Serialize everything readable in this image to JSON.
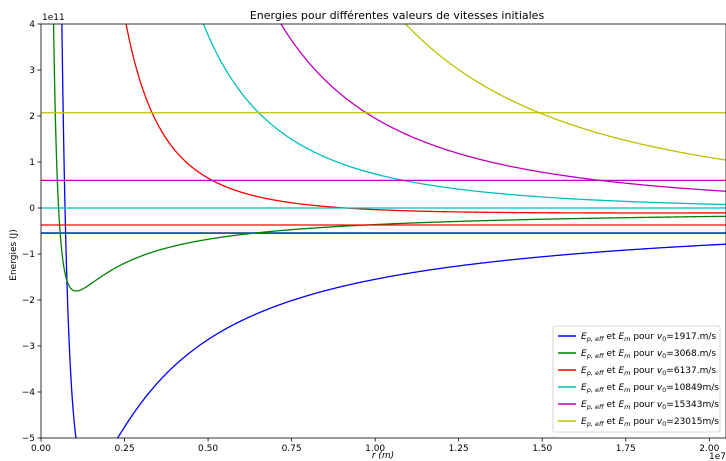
{
  "chart_data": {
    "type": "line",
    "title": "Energies pour différentes valeurs de vitesses initiales",
    "xlabel": "r (m)",
    "ylabel": "Energies (J)",
    "x_offset_label": "1e7",
    "y_offset_label": "1e11",
    "xlim": [
      0,
      20500000
    ],
    "ylim": [
      -500000000000.0,
      400000000000.0
    ],
    "x_tick_values": [
      0,
      2500000,
      5000000,
      7500000,
      10000000,
      12500000,
      15000000,
      17500000,
      20000000
    ],
    "x_tick_labels": [
      "0.00",
      "0.25",
      "0.50",
      "0.75",
      "1.00",
      "1.25",
      "1.50",
      "1.75",
      "2.00"
    ],
    "y_tick_values": [
      -500000000000.0,
      -400000000000.0,
      -300000000000.0,
      -200000000000.0,
      -100000000000.0,
      0,
      100000000000.0,
      200000000000.0,
      300000000000.0,
      400000000000.0
    ],
    "y_tick_labels": [
      "−5",
      "−4",
      "−3",
      "−2",
      "−1",
      "0",
      "1",
      "2",
      "3",
      "4"
    ],
    "legend_position": "lower right",
    "grid": false,
    "series": [
      {
        "prefix": "E",
        "sub": "p, eff",
        "mid": " et ",
        "prefix2": "E",
        "sub2": "m",
        "suffix": " pour ",
        "v": "v",
        "vsub": "0",
        "value": "=1917.m/s",
        "color": "#0000ff",
        "Em": -54000000000.0,
        "K": 1.2e+24,
        "A": 1.67e+18
      },
      {
        "prefix": "E",
        "sub": "p, eff",
        "mid": " et ",
        "prefix2": "E",
        "sub2": "m",
        "suffix": " pour ",
        "v": "v",
        "vsub": "0",
        "value": "=3068.m/s",
        "color": "#008000",
        "Em": -55000000000.0,
        "K": 2e+23,
        "A": 3.8e+17
      },
      {
        "prefix": "E",
        "sub": "p, eff",
        "mid": " et ",
        "prefix2": "E",
        "sub2": "m",
        "suffix": " pour ",
        "v": "v",
        "vsub": "0",
        "value": "=6137.m/s",
        "color": "#ff0000",
        "Em": -37000000000.0,
        "K": 3.6e+24,
        "A": 3.95e+17
      },
      {
        "prefix": "E",
        "sub": "p, eff",
        "mid": " et ",
        "prefix2": "E",
        "sub2": "m",
        "suffix": " pour ",
        "v": "v",
        "vsub": "0",
        "value": "=10849m/s",
        "color": "#00bfbf",
        "Em": 0,
        "K": 1.14e+25,
        "A": 4e+17
      },
      {
        "prefix": "E",
        "sub": "p, eff",
        "mid": " et ",
        "prefix2": "E",
        "sub2": "m",
        "suffix": " pour ",
        "v": "v",
        "vsub": "0",
        "value": "=15343m/s",
        "color": "#bf00bf",
        "Em": 60000000000.0,
        "K": 2.35e+25,
        "A": 4e+17
      },
      {
        "prefix": "E",
        "sub": "p, eff",
        "mid": " et ",
        "prefix2": "E",
        "sub2": "m",
        "suffix": " pour ",
        "v": "v",
        "vsub": "0",
        "value": "=23015m/s",
        "color": "#bfbf00",
        "Em": 207000000000.0,
        "K": 5.2e+25,
        "A": 4e+17
      }
    ]
  }
}
